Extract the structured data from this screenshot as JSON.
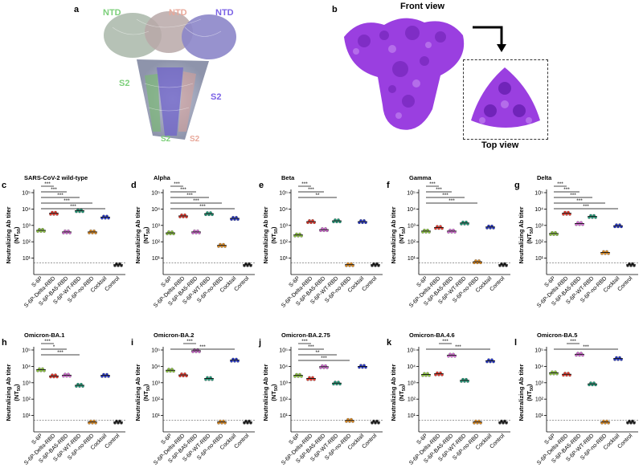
{
  "panel_a": {
    "letter": "a",
    "labels": [
      "NTD",
      "NTD",
      "NTD",
      "S2",
      "S2",
      "S2",
      "S2"
    ],
    "colors": {
      "green": "#7ccf7a",
      "salmon": "#e8a89a",
      "purple": "#7b62e6"
    }
  },
  "panel_b": {
    "letter": "b",
    "front_title": "Front view",
    "top_title": "Top view",
    "map_color": "#9a3fe0"
  },
  "axis": {
    "ylabel_line1": "Neutralizing Ab titer",
    "ylabel_line2": "(NT",
    "ylabel_sub": "50",
    "ylabel_close": ")",
    "tick_labels": [
      "10¹",
      "10²",
      "10³",
      "10⁴",
      "10⁵"
    ],
    "x_categories": [
      "S-6P",
      "S-6P-Delta-RBD",
      "S-6P-BA5-RBD",
      "S-6P-WT-RBD",
      "S-6P-no-RBD",
      "Cocktail",
      "Control"
    ],
    "group_colors": [
      "#8dc63f",
      "#e8362a",
      "#d66ad6",
      "#1f9a78",
      "#e08a1e",
      "#2535c8",
      "#222222"
    ]
  },
  "chart_data": [
    {
      "type": "scatter",
      "letter": "c",
      "title": "SARS-CoV-2 wild-type",
      "ylim": [
        1,
        100000
      ],
      "log_scale": true,
      "detection_limit": 5,
      "values": [
        500,
        5500,
        400,
        8000,
        400,
        3200,
        4
      ],
      "sig": [
        {
          "from": 0,
          "to": 1,
          "label": "***"
        },
        {
          "from": 0,
          "to": 2,
          "label": "***"
        },
        {
          "from": 0,
          "to": 3,
          "label": "***"
        },
        {
          "from": 0,
          "to": 4,
          "label": "***"
        },
        {
          "from": 0,
          "to": 5,
          "label": "***"
        }
      ]
    },
    {
      "type": "scatter",
      "letter": "d",
      "title": "Alpha",
      "ylim": [
        1,
        100000
      ],
      "log_scale": true,
      "detection_limit": 5,
      "values": [
        350,
        3800,
        400,
        5200,
        60,
        2700,
        4
      ],
      "sig": [
        {
          "from": 0,
          "to": 1,
          "label": "***"
        },
        {
          "from": 0,
          "to": 2,
          "label": "***"
        },
        {
          "from": 0,
          "to": 3,
          "label": "***"
        },
        {
          "from": 0,
          "to": 4,
          "label": "***"
        },
        {
          "from": 0,
          "to": 5,
          "label": "***"
        }
      ]
    },
    {
      "type": "scatter",
      "letter": "e",
      "title": "Beta",
      "ylim": [
        1,
        100000
      ],
      "log_scale": true,
      "detection_limit": 5,
      "values": [
        260,
        1700,
        550,
        1900,
        4,
        1700,
        4
      ],
      "sig": [
        {
          "from": 0,
          "to": 1,
          "label": "***"
        },
        {
          "from": 0,
          "to": 2,
          "label": "***"
        },
        {
          "from": 0,
          "to": 3,
          "label": "**"
        }
      ]
    },
    {
      "type": "scatter",
      "letter": "f",
      "title": "Gamma",
      "ylim": [
        1,
        100000
      ],
      "log_scale": true,
      "detection_limit": 5,
      "values": [
        450,
        750,
        450,
        1400,
        6,
        800,
        4
      ],
      "sig": [
        {
          "from": 0,
          "to": 1,
          "label": "***"
        },
        {
          "from": 0,
          "to": 2,
          "label": "***"
        },
        {
          "from": 0,
          "to": 3,
          "label": "***"
        },
        {
          "from": 0,
          "to": 4,
          "label": "***"
        }
      ]
    },
    {
      "type": "scatter",
      "letter": "g",
      "title": "Delta",
      "ylim": [
        1,
        100000
      ],
      "log_scale": true,
      "detection_limit": 5,
      "values": [
        320,
        5500,
        1300,
        3500,
        22,
        950,
        4
      ],
      "sig": [
        {
          "from": 0,
          "to": 1,
          "label": "***"
        },
        {
          "from": 0,
          "to": 2,
          "label": "***"
        },
        {
          "from": 0,
          "to": 3,
          "label": "***"
        },
        {
          "from": 0,
          "to": 4,
          "label": "***"
        },
        {
          "from": 0,
          "to": 5,
          "label": "***"
        }
      ]
    },
    {
      "type": "scatter",
      "letter": "h",
      "title": "Omicron-BA.1",
      "ylim": [
        1,
        100000
      ],
      "log_scale": true,
      "detection_limit": 5,
      "values": [
        6200,
        2600,
        2900,
        700,
        4,
        2800,
        4
      ],
      "sig": [
        {
          "from": 0,
          "to": 1,
          "label": "***"
        },
        {
          "from": 0,
          "to": 2,
          "label": "*"
        },
        {
          "from": 0,
          "to": 3,
          "label": "***"
        }
      ]
    },
    {
      "type": "scatter",
      "letter": "i",
      "title": "Omicron-BA.2",
      "ylim": [
        1,
        100000
      ],
      "log_scale": true,
      "detection_limit": 5,
      "values": [
        5800,
        3000,
        90000,
        1800,
        4,
        24000,
        4
      ],
      "sig": [
        {
          "from": 1,
          "to": 2,
          "label": "***"
        },
        {
          "from": 0,
          "to": 5,
          "label": "***"
        }
      ]
    },
    {
      "type": "scatter",
      "letter": "j",
      "title": "Omicron-BA.2.75",
      "ylim": [
        1,
        100000
      ],
      "log_scale": true,
      "detection_limit": 5,
      "values": [
        2800,
        1800,
        9500,
        950,
        5,
        10000,
        4
      ],
      "sig": [
        {
          "from": 0,
          "to": 1,
          "label": "***"
        },
        {
          "from": 0,
          "to": 2,
          "label": "***"
        },
        {
          "from": 0,
          "to": 3,
          "label": "**"
        },
        {
          "from": 0,
          "to": 4,
          "label": "***"
        }
      ]
    },
    {
      "type": "scatter",
      "letter": "k",
      "title": "Omicron-BA.4.6",
      "ylim": [
        1,
        100000
      ],
      "log_scale": true,
      "detection_limit": 5,
      "values": [
        3200,
        3500,
        48000,
        1400,
        4,
        22000,
        4
      ],
      "sig": [
        {
          "from": 1,
          "to": 2,
          "label": "***"
        },
        {
          "from": 0,
          "to": 5,
          "label": "***"
        }
      ]
    },
    {
      "type": "scatter",
      "letter": "l",
      "title": "Omicron-BA.5",
      "ylim": [
        1,
        100000
      ],
      "log_scale": true,
      "detection_limit": 5,
      "values": [
        4000,
        3300,
        55000,
        850,
        4,
        30000,
        4
      ],
      "sig": [
        {
          "from": 1,
          "to": 2,
          "label": "***"
        },
        {
          "from": 0,
          "to": 5,
          "label": "***"
        }
      ]
    }
  ]
}
